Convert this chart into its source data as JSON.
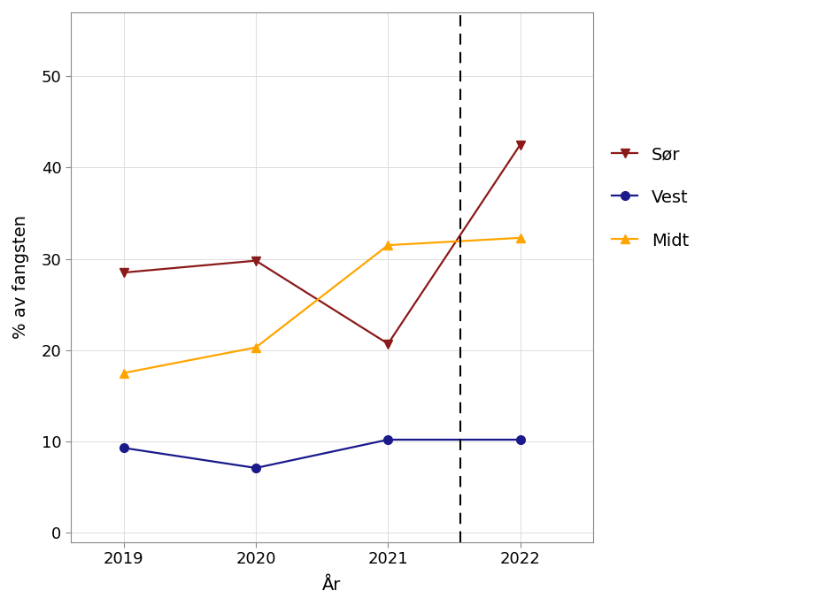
{
  "years": [
    2019,
    2020,
    2021,
    2022
  ],
  "sor": [
    28.5,
    29.8,
    20.7,
    42.5
  ],
  "vest": [
    9.3,
    7.1,
    10.2,
    10.2
  ],
  "midt": [
    17.5,
    20.3,
    31.5,
    32.3
  ],
  "sor_color": "#8B1A1A",
  "vest_color": "#1A1A8B",
  "midt_color": "#FFA500",
  "dashed_line_x": 2021.55,
  "ylabel": "% av fangsten",
  "xlabel": "År",
  "ylim": [
    -1,
    57
  ],
  "yticks": [
    0,
    10,
    20,
    30,
    40,
    50
  ],
  "xlim": [
    2018.6,
    2022.55
  ],
  "legend_labels": [
    "Sør",
    "Vest",
    "Midt"
  ],
  "linewidth": 1.6,
  "markersize": 7,
  "grid_color": "#DDDDDD",
  "background_color": "#FFFFFF",
  "panel_background": "#FFFFFF",
  "tick_fontsize": 13,
  "label_fontsize": 14,
  "legend_fontsize": 14
}
